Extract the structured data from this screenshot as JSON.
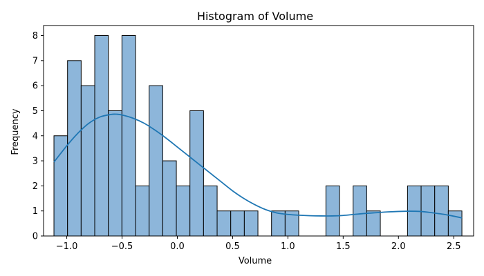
{
  "chart_data": {
    "type": "bar",
    "title": "Histogram of Volume",
    "xlabel": "Volume",
    "ylabel": "Frequency",
    "xlim": [
      -1.21,
      2.68
    ],
    "ylim": [
      0,
      8.4
    ],
    "x_ticks": [
      -1.0,
      -0.5,
      0.0,
      0.5,
      1.0,
      1.5,
      2.0,
      2.5
    ],
    "x_tick_labels": [
      "−1.0",
      "−0.5",
      "0.0",
      "0.5",
      "1.0",
      "1.5",
      "2.0",
      "2.5"
    ],
    "y_ticks": [
      0,
      1,
      2,
      3,
      4,
      5,
      6,
      7,
      8
    ],
    "y_tick_labels": [
      "0",
      "1",
      "2",
      "3",
      "4",
      "5",
      "6",
      "7",
      "8"
    ],
    "bin_edges": [
      -1.116,
      -0.993,
      -0.87,
      -0.747,
      -0.624,
      -0.501,
      -0.378,
      -0.255,
      -0.132,
      -0.009,
      0.114,
      0.237,
      0.36,
      0.483,
      0.606,
      0.729,
      0.852,
      0.975,
      1.098,
      1.221,
      1.344,
      1.467,
      1.59,
      1.713,
      1.836,
      1.959,
      2.082,
      2.205,
      2.328,
      2.451,
      2.574
    ],
    "counts": [
      4,
      7,
      6,
      8,
      5,
      8,
      2,
      6,
      3,
      2,
      5,
      2,
      1,
      1,
      1,
      0,
      1,
      1,
      0,
      0,
      2,
      0,
      2,
      1,
      0,
      0,
      2,
      2,
      2,
      1
    ],
    "kde": {
      "x": [
        -1.116,
        -1.0,
        -0.9,
        -0.8,
        -0.7,
        -0.6,
        -0.55,
        -0.5,
        -0.4,
        -0.3,
        -0.2,
        -0.1,
        0.0,
        0.1,
        0.2,
        0.3,
        0.4,
        0.5,
        0.6,
        0.7,
        0.8,
        0.9,
        1.0,
        1.1,
        1.2,
        1.3,
        1.4,
        1.5,
        1.6,
        1.7,
        1.8,
        1.9,
        2.0,
        2.1,
        2.2,
        2.3,
        2.4,
        2.5,
        2.574
      ],
      "y": [
        2.95,
        3.6,
        4.1,
        4.5,
        4.75,
        4.85,
        4.86,
        4.83,
        4.7,
        4.5,
        4.22,
        3.9,
        3.55,
        3.2,
        2.85,
        2.5,
        2.15,
        1.8,
        1.5,
        1.25,
        1.05,
        0.92,
        0.86,
        0.83,
        0.81,
        0.8,
        0.8,
        0.82,
        0.86,
        0.9,
        0.93,
        0.96,
        0.98,
        0.99,
        0.98,
        0.93,
        0.87,
        0.79,
        0.72
      ]
    },
    "colors": {
      "bar_fill": "#8db6da",
      "bar_edge": "#000000",
      "kde_line": "#1f77b4"
    },
    "grid": false,
    "legend": "none"
  }
}
